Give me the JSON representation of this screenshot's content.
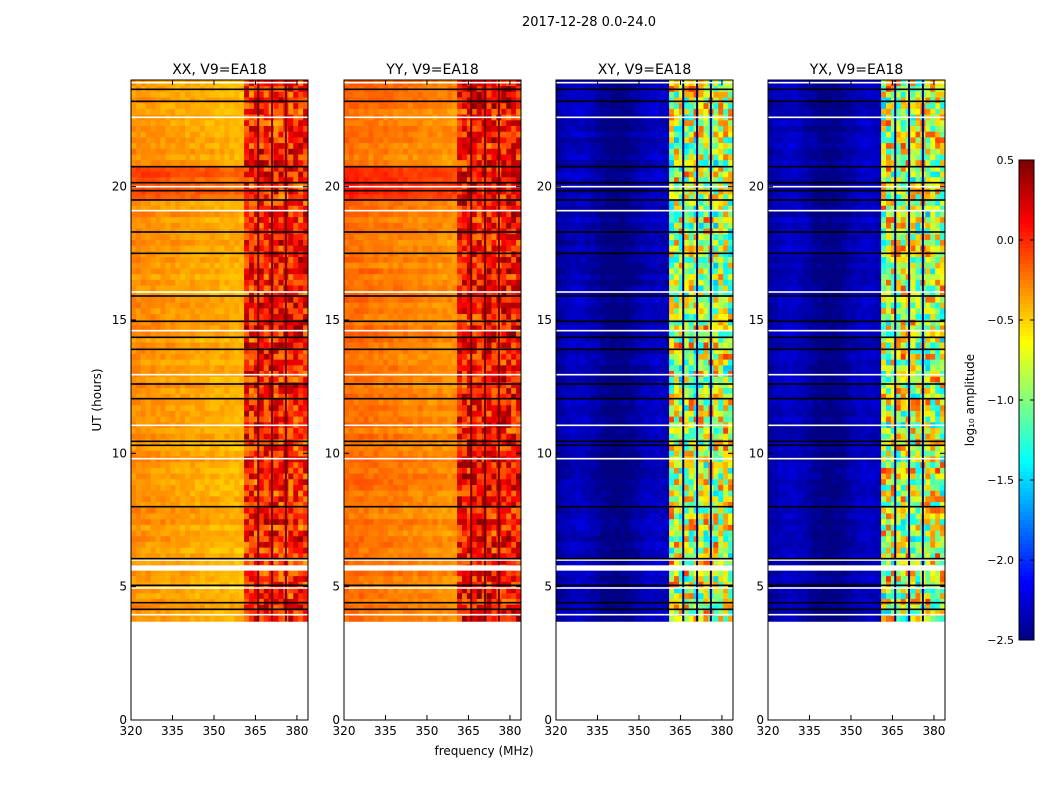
{
  "figure": {
    "suptitle": "2017-12-28 0.0-24.0"
  },
  "chart_data": {
    "type": "heatmap",
    "xlabel": "frequency (MHz)",
    "ylabel": "UT (hours)",
    "xlim": [
      320,
      384
    ],
    "ylim": [
      0,
      24
    ],
    "xticks": [
      320,
      335,
      350,
      365,
      380
    ],
    "yticks": [
      0,
      5,
      10,
      15,
      20
    ],
    "data_time_range": [
      3.7,
      24.0
    ],
    "flagged_band_MHz": [
      360.5,
      384
    ],
    "panels": [
      {
        "title": "XX, V9=EA18",
        "pol": "XX",
        "left_level": -0.35,
        "band_level": 0.05
      },
      {
        "title": "YY, V9=EA18",
        "pol": "YY",
        "left_level": -0.25,
        "band_level": 0.1
      },
      {
        "title": "XY, V9=EA18",
        "pol": "XY",
        "left_level": -2.25,
        "band_level": -0.8
      },
      {
        "title": "YX, V9=EA18",
        "pol": "YX",
        "left_level": -2.25,
        "band_level": -0.8
      }
    ],
    "band_gaps_MHz": [
      366,
      371,
      376
    ],
    "gap_rows_hours": [
      3.95,
      4.15,
      4.4,
      4.95,
      5.05,
      5.75,
      6.0,
      6.05,
      8.0,
      9.8,
      10.3,
      10.45,
      11.05,
      12.05,
      12.6,
      12.95,
      13.9,
      14.35,
      14.6,
      14.95,
      15.9,
      16.05,
      17.5,
      18.3,
      19.1,
      19.5,
      19.85,
      20.0,
      20.15,
      20.75,
      22.6,
      23.2,
      23.65,
      23.9
    ],
    "colorbar": {
      "label": "log₁₀ amplitude",
      "min": -2.5,
      "max": 0.5,
      "ticks": [
        "0.5",
        "0.0",
        "−0.5",
        "−1.0",
        "−1.5",
        "−2.0",
        "−2.5"
      ],
      "tick_values": [
        0.5,
        0.0,
        -0.5,
        -1.0,
        -1.5,
        -2.0,
        -2.5
      ],
      "colormap": "jet"
    }
  }
}
